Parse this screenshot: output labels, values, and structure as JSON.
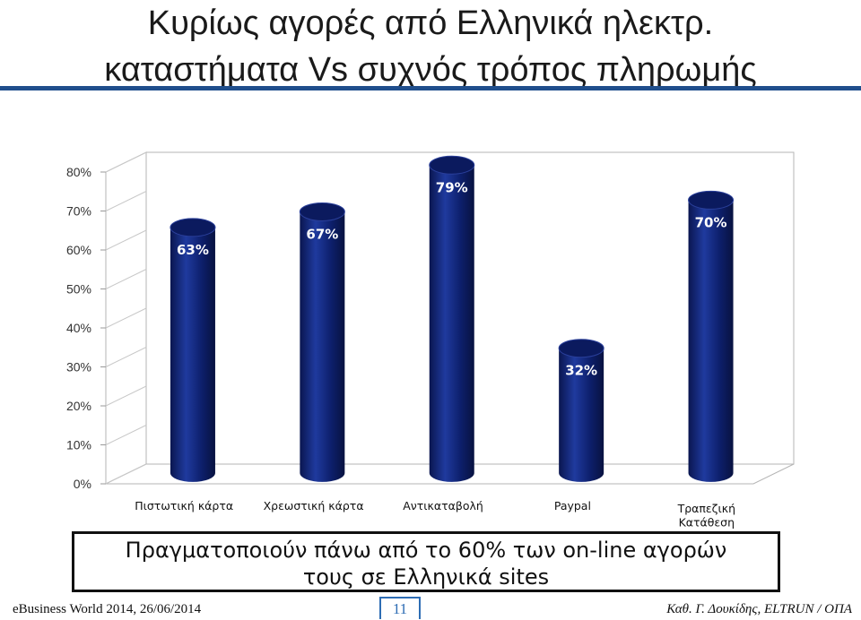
{
  "slide": {
    "title_line1": "Κυρίως αγορές από Ελληνικά ηλεκτρ.",
    "title_line2": "καταστήματα Vs συχνός τρόπος πληρωμής",
    "callout_line1": "Πραγματοποιούν πάνω από το 60% των on-line αγορών",
    "callout_line2": "τους σε Ελληνικά sites",
    "footer_left": "eBusiness World 2014, 26/06/2014",
    "page_number": "11",
    "footer_right": "Καθ. Γ. Δουκίδης, ELTRUN / ΟΠΑ",
    "accent_color": "#1f4e8c"
  },
  "chart_data": {
    "type": "bar",
    "style": "3d-cylinder",
    "categories": [
      "Πιστωτική κάρτα",
      "Χρεωστική κάρτα",
      "Αντικαταβολή",
      "Paypal",
      "Τραπεζική Κατάθεση"
    ],
    "values": [
      63,
      67,
      79,
      32,
      70
    ],
    "data_labels": [
      "63%",
      "67%",
      "79%",
      "32%",
      "70%"
    ],
    "y_ticks": [
      "0%",
      "10%",
      "20%",
      "30%",
      "40%",
      "50%",
      "60%",
      "70%",
      "80%"
    ],
    "ylim": [
      0,
      80
    ],
    "grid": false,
    "legend": "none",
    "bar_color": "#0d1f6b",
    "bar_highlight": "#1f3a9e"
  }
}
